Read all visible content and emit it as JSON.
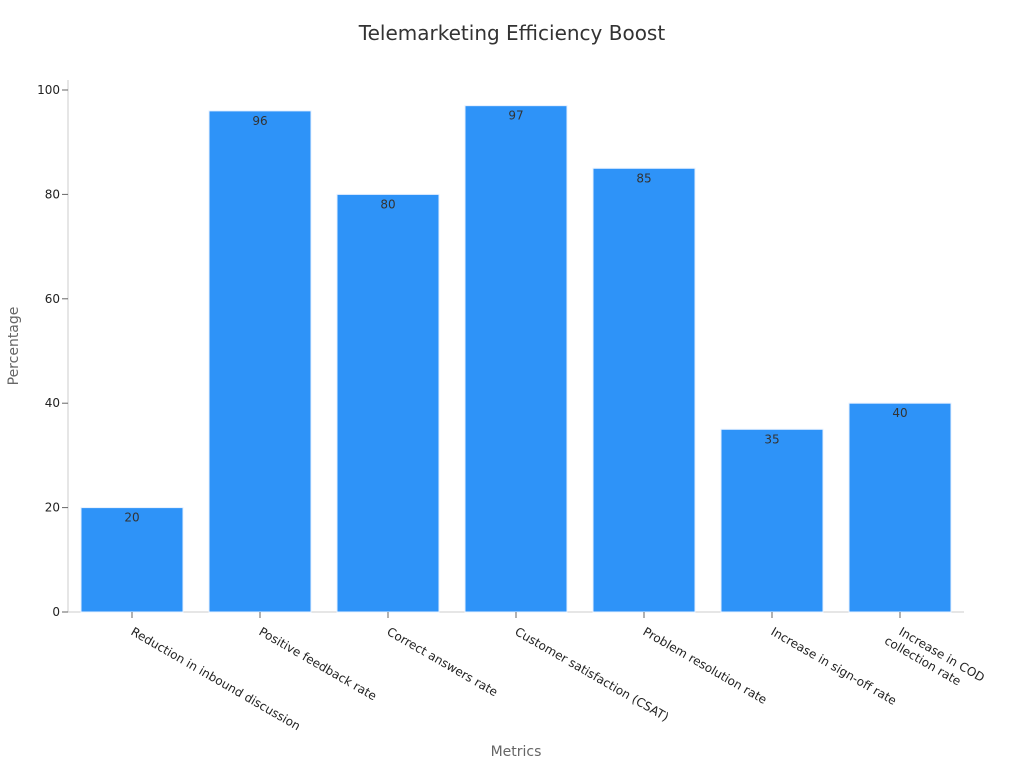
{
  "chart_data": {
    "type": "bar",
    "title": "Telemarketing Efficiency Boost",
    "xlabel": "Metrics",
    "ylabel": "Percentage",
    "categories": [
      "Reduction in inbound discussion",
      "Positive feedback rate",
      "Correct answers rate",
      "Customer satisfaction (CSAT)",
      "Problem resolution rate",
      "Increase in sign-off rate",
      "Increase in COD collection rate"
    ],
    "category_lines": [
      [
        "Reduction in inbound discussion"
      ],
      [
        "Positive feedback rate"
      ],
      [
        "Correct answers rate"
      ],
      [
        "Customer satisfaction (CSAT)"
      ],
      [
        "Problem resolution rate"
      ],
      [
        "Increase in sign-off rate"
      ],
      [
        "Increase in COD",
        "collection rate"
      ]
    ],
    "values": [
      20,
      96,
      80,
      97,
      85,
      35,
      40
    ],
    "ylim": [
      0,
      100
    ],
    "yticks": [
      0,
      20,
      40,
      60,
      80,
      100
    ],
    "grid": false,
    "colors": {
      "bar": "#2e93f8",
      "bar_edge": "#e6f0ff"
    }
  }
}
